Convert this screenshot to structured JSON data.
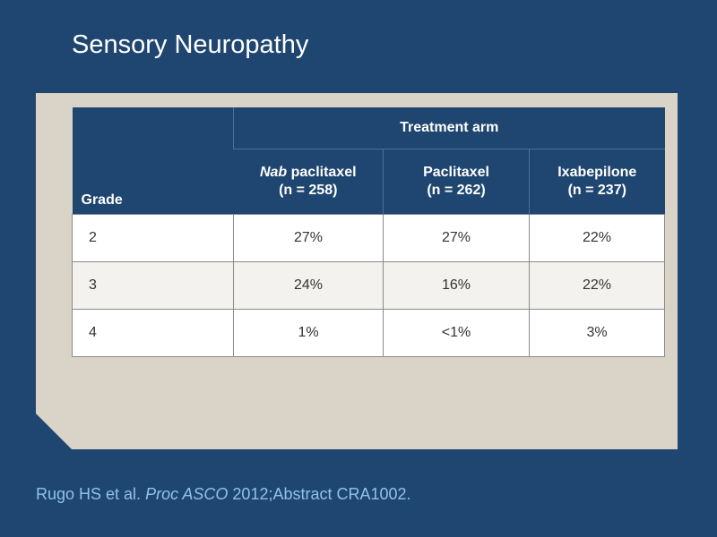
{
  "title": "Sensory Neuropathy",
  "table": {
    "grade_header": "Grade",
    "group_header": "Treatment arm",
    "arms": [
      {
        "name_italic": "Nab",
        "name_rest": " paclitaxel",
        "n": "(n = 258)"
      },
      {
        "name_italic": "",
        "name_rest": "Paclitaxel",
        "n": "(n = 262)"
      },
      {
        "name_italic": "",
        "name_rest": "Ixabepilone",
        "n": "(n = 237)"
      }
    ],
    "rows": [
      {
        "grade": "2",
        "values": [
          "27%",
          "27%",
          "22%"
        ]
      },
      {
        "grade": "3",
        "values": [
          "24%",
          "16%",
          "22%"
        ]
      },
      {
        "grade": "4",
        "values": [
          "1%",
          "<1%",
          "3%"
        ]
      }
    ]
  },
  "citation": {
    "authors": "Rugo HS et al. ",
    "journal": "Proc ASCO",
    "rest": " 2012;Abstract CRA1002."
  },
  "colors": {
    "background": "#1f4670",
    "panel": "#d9d4c7",
    "citation": "#8fc3e6"
  }
}
